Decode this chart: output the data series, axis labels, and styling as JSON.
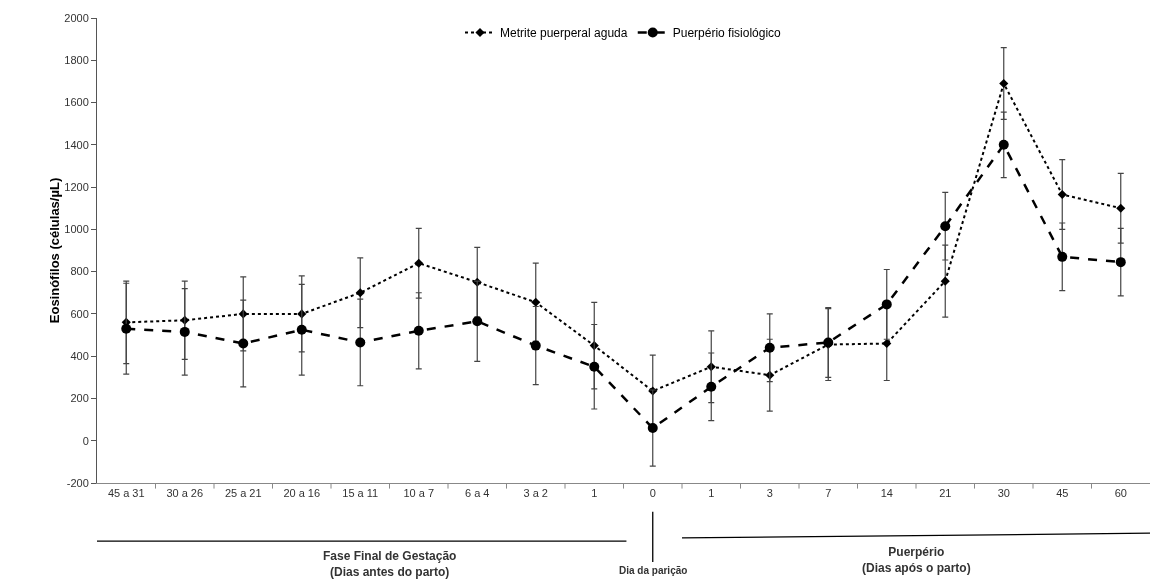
{
  "chart_data": {
    "type": "line",
    "ylabel": "Eosinófilos (células/µL)",
    "categories": [
      "45 a 31",
      "30 a 26",
      "25 a 21",
      "20 a 16",
      "15 a 11",
      "10 a 7",
      "6 a 4",
      "3 a 2",
      "1",
      "0",
      "1",
      "3",
      "7",
      "14",
      "21",
      "30",
      "45",
      "60"
    ],
    "series": [
      {
        "name": "Metrite puerperal aguda",
        "color": "#000000",
        "marker": "diamond",
        "line_style": "dotted",
        "values": [
          560,
          570,
          600,
          600,
          700,
          840,
          750,
          655,
          450,
          235,
          350,
          310,
          455,
          460,
          755,
          1690,
          1165,
          1100
        ],
        "errors": [
          195,
          185,
          175,
          180,
          165,
          165,
          165,
          185,
          205,
          170,
          170,
          170,
          170,
          175,
          170,
          170,
          165,
          165
        ]
      },
      {
        "name": "Puerpério fisiológico",
        "color": "#000000",
        "marker": "circle",
        "line_style": "dashed",
        "values": [
          530,
          515,
          460,
          525,
          465,
          520,
          565,
          450,
          350,
          60,
          255,
          440,
          465,
          645,
          1015,
          1400,
          870,
          845
        ],
        "errors": [
          215,
          205,
          205,
          215,
          205,
          180,
          190,
          185,
          200,
          180,
          160,
          160,
          165,
          165,
          160,
          155,
          160,
          160
        ]
      }
    ],
    "ylim": [
      -200,
      2000
    ],
    "yticks": [
      -200,
      0,
      200,
      400,
      600,
      800,
      1000,
      1200,
      1400,
      1600,
      1800,
      2000
    ],
    "grid": false,
    "legend": "top",
    "annotations": [
      "Fase Final de Gestação\n(Dias antes do parto)",
      "Dia da parição",
      "Puerpério\n(Dias após o parto)"
    ]
  }
}
